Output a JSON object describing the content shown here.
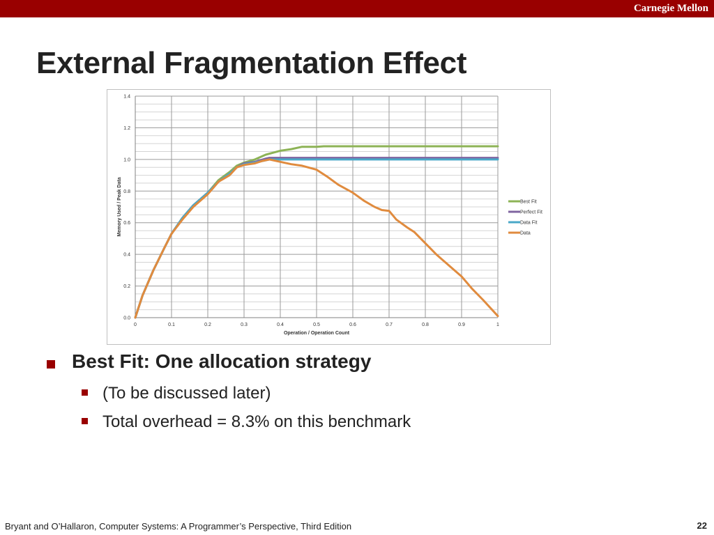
{
  "header": {
    "brand": "Carnegie Mellon",
    "bar_color": "#990000"
  },
  "slide": {
    "title": "External Fragmentation Effect",
    "bullets": [
      {
        "text": "Best Fit: One allocation strategy",
        "level": 1
      },
      {
        "text": "(To be discussed later)",
        "level": 2
      },
      {
        "text": "Total overhead = 8.3% on this benchmark",
        "level": 2
      }
    ],
    "bullet_color": "#990000"
  },
  "footer": {
    "citation": "Bryant and O’Hallaron, Computer Systems: A Programmer’s Perspective, Third Edition",
    "page_number": "22"
  },
  "chart_data": {
    "type": "line",
    "xlabel": "Operation / Operation Count",
    "ylabel": "Memory Used / Peak Data",
    "xlim": [
      0,
      1
    ],
    "ylim": [
      0,
      1.4
    ],
    "xticks": [
      "0",
      "0.1",
      "0.2",
      "0.3",
      "0.4",
      "0.5",
      "0.6",
      "0.7",
      "0.8",
      "0.9",
      "1"
    ],
    "yticks": [
      "0.0",
      "0.2",
      "0.4",
      "0.6",
      "0.8",
      "1.0",
      "1.2",
      "1.4"
    ],
    "grid": true,
    "legend_position": "right",
    "series": [
      {
        "name": "Best Fit",
        "color": "#8db356",
        "x": [
          0,
          0.02,
          0.05,
          0.08,
          0.1,
          0.13,
          0.16,
          0.2,
          0.23,
          0.26,
          0.28,
          0.3,
          0.33,
          0.36,
          0.4,
          0.43,
          0.46,
          0.5,
          0.52,
          0.6,
          0.7,
          0.8,
          0.9,
          1
        ],
        "y": [
          0,
          0.14,
          0.3,
          0.44,
          0.53,
          0.63,
          0.71,
          0.79,
          0.87,
          0.92,
          0.96,
          0.98,
          1.0,
          1.03,
          1.055,
          1.065,
          1.08,
          1.08,
          1.083,
          1.083,
          1.083,
          1.083,
          1.083,
          1.083
        ]
      },
      {
        "name": "Perfect Fit",
        "color": "#7f64a0",
        "x": [
          0,
          0.02,
          0.05,
          0.08,
          0.1,
          0.13,
          0.16,
          0.2,
          0.23,
          0.26,
          0.28,
          0.3,
          0.33,
          0.36,
          0.37,
          0.4,
          0.5,
          0.6,
          0.7,
          0.8,
          0.9,
          1
        ],
        "y": [
          0,
          0.14,
          0.3,
          0.44,
          0.53,
          0.63,
          0.71,
          0.79,
          0.86,
          0.91,
          0.95,
          0.975,
          0.985,
          1.005,
          1.01,
          1.01,
          1.01,
          1.01,
          1.01,
          1.01,
          1.01,
          1.01
        ]
      },
      {
        "name": "Data Fit",
        "color": "#4aa8c8",
        "x": [
          0,
          0.02,
          0.05,
          0.08,
          0.1,
          0.13,
          0.16,
          0.2,
          0.23,
          0.26,
          0.28,
          0.3,
          0.33,
          0.36,
          0.37,
          0.4,
          0.5,
          0.6,
          0.7,
          0.8,
          0.9,
          1
        ],
        "y": [
          0,
          0.14,
          0.3,
          0.44,
          0.53,
          0.63,
          0.71,
          0.79,
          0.86,
          0.91,
          0.95,
          0.97,
          0.98,
          0.995,
          1.0,
          1.0,
          1.0,
          1.0,
          1.0,
          1.0,
          1.0,
          1.0
        ]
      },
      {
        "name": "Data",
        "color": "#e08b3e",
        "x": [
          0,
          0.02,
          0.05,
          0.08,
          0.1,
          0.13,
          0.16,
          0.2,
          0.23,
          0.26,
          0.28,
          0.3,
          0.33,
          0.35,
          0.37,
          0.4,
          0.43,
          0.46,
          0.5,
          0.53,
          0.56,
          0.6,
          0.63,
          0.66,
          0.68,
          0.7,
          0.72,
          0.75,
          0.77,
          0.8,
          0.83,
          0.86,
          0.9,
          0.93,
          0.96,
          1
        ],
        "y": [
          0,
          0.14,
          0.3,
          0.44,
          0.53,
          0.62,
          0.7,
          0.78,
          0.86,
          0.9,
          0.95,
          0.965,
          0.975,
          0.99,
          1.0,
          0.985,
          0.97,
          0.96,
          0.935,
          0.89,
          0.84,
          0.79,
          0.74,
          0.7,
          0.68,
          0.675,
          0.62,
          0.57,
          0.54,
          0.47,
          0.4,
          0.34,
          0.26,
          0.18,
          0.11,
          0.01
        ]
      }
    ]
  }
}
